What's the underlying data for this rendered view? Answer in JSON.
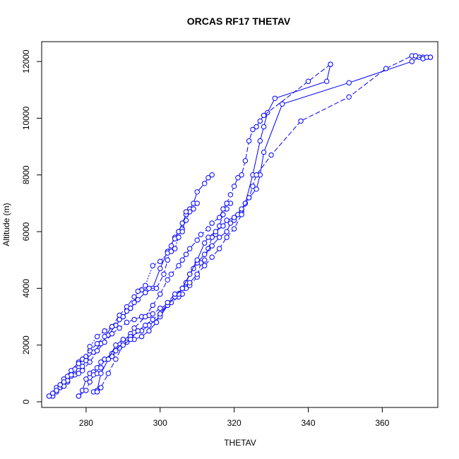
{
  "chart_data": {
    "type": "line",
    "title": "ORCAS RF17 THETAV",
    "xlabel": "THETAV",
    "ylabel": "Altitude (m)",
    "xlim": [
      268,
      375
    ],
    "ylim": [
      -200,
      12700
    ],
    "xticks": [
      280,
      300,
      320,
      340,
      360
    ],
    "yticks": [
      0,
      2000,
      4000,
      6000,
      8000,
      10000,
      12000
    ],
    "grid": false,
    "legend": "none",
    "marker": "open-circle",
    "color": "#0000ff",
    "series": [
      {
        "x": [
          270,
          272,
          274,
          276,
          278,
          279,
          280,
          282,
          284,
          286,
          288,
          290,
          292,
          294,
          296,
          298,
          300,
          302,
          304,
          305,
          306,
          307,
          308,
          309,
          310,
          312,
          313,
          314
        ],
        "y": [
          200,
          500,
          800,
          1100,
          1400,
          1500,
          1500,
          1750,
          2050,
          2350,
          2700,
          3000,
          3300,
          3600,
          3850,
          4000,
          4700,
          5300,
          5800,
          6000,
          6300,
          6600,
          6800,
          7000,
          7400,
          7700,
          7900,
          8000
        ]
      },
      {
        "x": [
          271,
          273,
          275,
          276,
          277,
          278,
          279,
          280,
          281,
          283,
          285,
          287,
          289,
          291,
          293,
          295,
          297,
          299,
          301,
          302,
          303,
          304,
          305,
          306,
          307,
          308,
          309,
          310
        ],
        "y": [
          200,
          500,
          700,
          950,
          1150,
          1350,
          1500,
          1600,
          1800,
          2050,
          2300,
          2650,
          3050,
          3350,
          3700,
          3950,
          4000,
          4000,
          4500,
          5000,
          5500,
          5750,
          6000,
          6100,
          6400,
          6700,
          6800,
          7000
        ]
      },
      {
        "x": [
          271,
          272,
          274,
          275,
          276,
          277,
          278,
          279,
          280,
          281,
          283,
          285,
          287,
          289,
          290,
          291,
          292,
          293,
          294,
          296,
          298,
          300,
          302,
          303,
          304,
          305,
          306,
          307
        ],
        "y": [
          200,
          350,
          550,
          750,
          900,
          950,
          1100,
          1250,
          1450,
          1950,
          2300,
          2500,
          2650,
          2900,
          3000,
          3200,
          3300,
          3500,
          3900,
          4100,
          4800,
          4950,
          5250,
          5300,
          5400,
          5800,
          6000,
          6700
        ]
      },
      {
        "x": [
          270,
          271,
          272,
          273,
          274,
          275,
          276,
          278,
          279,
          281,
          283,
          285,
          287,
          289,
          291,
          293,
          295,
          297,
          298,
          300,
          303,
          305,
          306,
          307,
          308,
          310,
          311,
          312,
          313,
          314,
          315,
          316,
          317,
          318,
          319
        ],
        "y": [
          200,
          300,
          400,
          600,
          700,
          900,
          950,
          1000,
          1100,
          1400,
          1800,
          2100,
          2400,
          2600,
          2800,
          2900,
          3000,
          3050,
          3100,
          3300,
          3500,
          3700,
          3800,
          4000,
          4100,
          4400,
          4900,
          5000,
          5400,
          5800,
          5900,
          6200,
          6600,
          6800,
          7000
        ]
      },
      {
        "x": [
          278,
          279,
          280,
          281,
          282,
          283,
          284,
          285,
          287,
          289,
          291,
          293,
          295,
          297,
          299,
          300,
          302,
          304,
          305,
          306,
          307,
          308,
          309,
          310,
          312,
          314,
          316,
          318,
          319,
          320,
          322,
          323,
          325,
          327,
          328,
          329,
          331,
          345,
          346
        ],
        "y": [
          200,
          400,
          800,
          1000,
          1050,
          1200,
          1400,
          1500,
          1700,
          1900,
          2100,
          2200,
          2300,
          2500,
          2800,
          3100,
          3400,
          3700,
          3800,
          4000,
          4200,
          4500,
          4700,
          4900,
          5200,
          5500,
          5800,
          6000,
          6300,
          6400,
          6700,
          7000,
          8000,
          9200,
          9700,
          10200,
          10700,
          11300,
          11900
        ]
      },
      {
        "x": [
          278,
          280,
          281,
          282,
          283,
          284,
          285,
          287,
          288,
          290,
          292,
          293,
          296,
          298,
          300,
          302,
          303,
          305,
          306,
          307,
          308,
          310,
          311,
          313,
          314,
          316,
          317,
          318,
          319,
          320,
          321,
          322,
          323,
          324,
          325,
          326,
          327,
          328,
          340,
          346
        ],
        "y": [
          200,
          400,
          700,
          950,
          1000,
          1200,
          1500,
          1600,
          1800,
          2100,
          2400,
          2600,
          3000,
          3400,
          3800,
          4300,
          4500,
          4800,
          5000,
          5200,
          5400,
          5700,
          5900,
          6100,
          6300,
          6500,
          6800,
          7000,
          7300,
          7600,
          7900,
          8000,
          8500,
          9200,
          9600,
          9700,
          9900,
          10100,
          11300,
          11900
        ]
      },
      {
        "x": [
          282,
          283,
          284,
          286,
          288,
          290,
          292,
          295,
          297,
          300,
          302,
          304,
          306,
          308,
          310,
          312,
          313,
          315,
          317,
          318,
          320,
          321,
          322,
          323,
          324,
          326,
          327,
          328,
          333,
          351,
          368,
          370,
          371,
          373
        ],
        "y": [
          350,
          400,
          1000,
          1500,
          2000,
          2200,
          2300,
          2500,
          2700,
          3000,
          3400,
          3700,
          4000,
          4500,
          5000,
          5600,
          5800,
          6000,
          6200,
          6400,
          6500,
          6600,
          6800,
          7000,
          7200,
          7500,
          8000,
          8800,
          10500,
          11250,
          12000,
          12150,
          12150,
          12150
        ]
      },
      {
        "x": [
          283,
          284,
          286,
          288,
          290,
          292,
          294,
          296,
          298,
          300,
          302,
          304,
          306,
          308,
          310,
          312,
          314,
          316,
          318,
          320,
          322,
          324,
          325,
          326,
          330,
          338,
          351,
          361,
          368,
          369,
          371,
          372,
          373
        ],
        "y": [
          350,
          500,
          1000,
          1500,
          2000,
          2200,
          2500,
          2700,
          2900,
          3100,
          3500,
          3800,
          4000,
          4200,
          4500,
          4800,
          5100,
          5400,
          5800,
          6100,
          6600,
          7200,
          7600,
          8000,
          8700,
          9900,
          10750,
          11750,
          12200,
          12200,
          12100,
          12150,
          12150
        ]
      }
    ]
  }
}
